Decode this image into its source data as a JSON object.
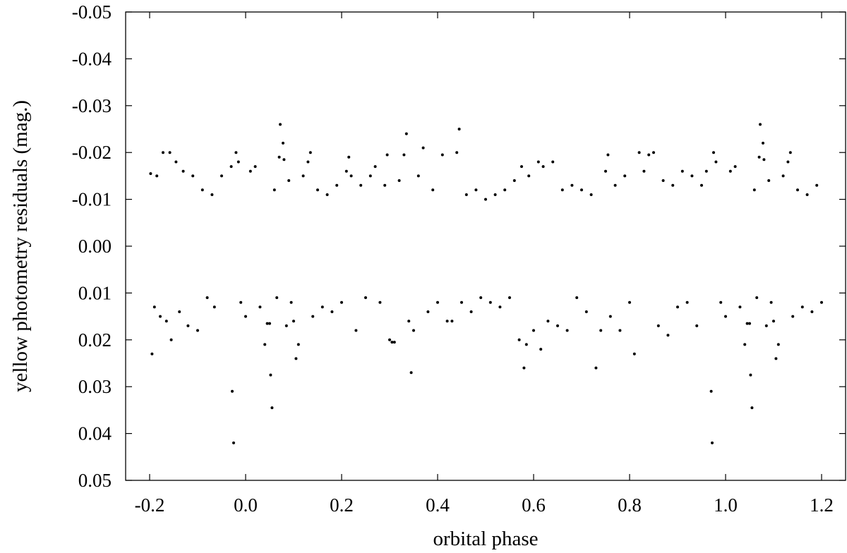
{
  "chart_data": {
    "type": "scatter",
    "title": "",
    "xlabel": "orbital phase",
    "ylabel": "yellow photometry residuals (mag.)",
    "xlim": [
      -0.25,
      1.25
    ],
    "ylim": [
      0.05,
      -0.05
    ],
    "y_inverted": true,
    "grid": false,
    "legend": "none",
    "x_ticks": [
      -0.2,
      0.0,
      0.2,
      0.4,
      0.6,
      0.8,
      1.0,
      1.2
    ],
    "x_tick_labels": [
      "-0.2",
      "0.0",
      "0.2",
      "0.4",
      "0.6",
      "0.8",
      "1.0",
      "1.2"
    ],
    "y_ticks": [
      -0.05,
      -0.04,
      -0.03,
      -0.02,
      -0.01,
      0.0,
      0.01,
      0.02,
      0.03,
      0.04,
      0.05
    ],
    "y_tick_labels": [
      "-0.05",
      "-0.04",
      "-0.03",
      "-0.02",
      "-0.01",
      "0.00",
      "0.01",
      "0.02",
      "0.03",
      "0.04",
      "0.05"
    ],
    "marker_color": "#000000",
    "series": [
      {
        "points": [
          [
            -0.195,
            0.023
          ],
          [
            -0.198,
            -0.0155
          ],
          [
            -0.19,
            0.013
          ],
          [
            -0.185,
            -0.015
          ],
          [
            -0.178,
            0.015
          ],
          [
            -0.172,
            -0.02
          ],
          [
            -0.165,
            0.016
          ],
          [
            -0.158,
            -0.02
          ],
          [
            -0.155,
            0.02
          ],
          [
            -0.145,
            -0.018
          ],
          [
            -0.138,
            0.014
          ],
          [
            -0.13,
            -0.016
          ],
          [
            -0.12,
            0.017
          ],
          [
            -0.11,
            -0.015
          ],
          [
            -0.1,
            0.018
          ],
          [
            -0.09,
            -0.012
          ],
          [
            -0.08,
            0.011
          ],
          [
            -0.07,
            -0.011
          ],
          [
            -0.065,
            0.013
          ],
          [
            -0.05,
            -0.015
          ],
          [
            -0.03,
            -0.017
          ],
          [
            -0.028,
            0.031
          ],
          [
            -0.025,
            0.042
          ],
          [
            -0.02,
            -0.02
          ],
          [
            -0.015,
            -0.018
          ],
          [
            -0.01,
            0.012
          ],
          [
            0.0,
            0.015
          ],
          [
            0.01,
            -0.016
          ],
          [
            0.02,
            -0.017
          ],
          [
            0.03,
            0.013
          ],
          [
            0.04,
            0.021
          ],
          [
            0.045,
            0.0165
          ],
          [
            0.05,
            0.0165
          ],
          [
            0.052,
            0.0275
          ],
          [
            0.055,
            0.0345
          ],
          [
            0.06,
            -0.012
          ],
          [
            0.065,
            0.011
          ],
          [
            0.07,
            -0.019
          ],
          [
            0.072,
            -0.026
          ],
          [
            0.078,
            -0.022
          ],
          [
            0.08,
            -0.0185
          ],
          [
            0.085,
            0.017
          ],
          [
            0.09,
            -0.014
          ],
          [
            0.095,
            0.012
          ],
          [
            0.1,
            0.016
          ],
          [
            0.105,
            0.024
          ],
          [
            0.11,
            0.021
          ],
          [
            0.12,
            -0.015
          ],
          [
            0.13,
            -0.018
          ],
          [
            0.135,
            -0.02
          ],
          [
            0.14,
            0.015
          ],
          [
            0.15,
            -0.012
          ],
          [
            0.16,
            0.013
          ],
          [
            0.17,
            -0.011
          ],
          [
            0.18,
            0.014
          ],
          [
            0.19,
            -0.013
          ],
          [
            0.2,
            0.012
          ],
          [
            0.21,
            -0.016
          ],
          [
            0.215,
            -0.019
          ],
          [
            0.22,
            -0.015
          ],
          [
            0.23,
            0.018
          ],
          [
            0.24,
            -0.013
          ],
          [
            0.25,
            0.011
          ],
          [
            0.26,
            -0.015
          ],
          [
            0.27,
            -0.017
          ],
          [
            0.28,
            0.012
          ],
          [
            0.29,
            -0.013
          ],
          [
            0.295,
            -0.0195
          ],
          [
            0.3,
            0.02
          ],
          [
            0.305,
            0.0205
          ],
          [
            0.31,
            0.0205
          ],
          [
            0.32,
            -0.014
          ],
          [
            0.33,
            -0.0195
          ],
          [
            0.335,
            -0.024
          ],
          [
            0.34,
            0.016
          ],
          [
            0.345,
            0.027
          ],
          [
            0.35,
            0.018
          ],
          [
            0.36,
            -0.015
          ],
          [
            0.37,
            -0.021
          ],
          [
            0.38,
            0.014
          ],
          [
            0.39,
            -0.012
          ],
          [
            0.4,
            0.012
          ],
          [
            0.41,
            -0.0195
          ],
          [
            0.42,
            0.016
          ],
          [
            0.43,
            0.016
          ],
          [
            0.44,
            -0.02
          ],
          [
            0.445,
            -0.025
          ],
          [
            0.45,
            0.012
          ],
          [
            0.46,
            -0.011
          ],
          [
            0.47,
            0.014
          ],
          [
            0.48,
            -0.012
          ],
          [
            0.49,
            0.011
          ],
          [
            0.5,
            -0.01
          ],
          [
            0.51,
            0.012
          ],
          [
            0.52,
            -0.011
          ],
          [
            0.53,
            0.013
          ],
          [
            0.54,
            -0.012
          ],
          [
            0.55,
            0.011
          ],
          [
            0.56,
            -0.014
          ],
          [
            0.57,
            0.02
          ],
          [
            0.575,
            -0.017
          ],
          [
            0.58,
            0.026
          ],
          [
            0.585,
            0.021
          ],
          [
            0.59,
            -0.015
          ],
          [
            0.6,
            0.018
          ],
          [
            0.61,
            -0.018
          ],
          [
            0.615,
            0.022
          ],
          [
            0.62,
            -0.017
          ],
          [
            0.63,
            0.016
          ],
          [
            0.64,
            -0.018
          ],
          [
            0.65,
            0.017
          ],
          [
            0.66,
            -0.012
          ],
          [
            0.67,
            0.018
          ],
          [
            0.68,
            -0.013
          ],
          [
            0.69,
            0.011
          ],
          [
            0.7,
            -0.012
          ],
          [
            0.71,
            0.014
          ],
          [
            0.72,
            -0.011
          ],
          [
            0.73,
            0.026
          ],
          [
            0.74,
            0.018
          ],
          [
            0.75,
            -0.016
          ],
          [
            0.755,
            -0.0195
          ],
          [
            0.76,
            0.015
          ],
          [
            0.77,
            -0.013
          ],
          [
            0.78,
            0.018
          ],
          [
            0.79,
            -0.015
          ],
          [
            0.8,
            0.012
          ],
          [
            0.81,
            0.023
          ],
          [
            0.82,
            -0.02
          ],
          [
            0.83,
            -0.016
          ],
          [
            0.84,
            -0.0195
          ],
          [
            0.85,
            -0.02
          ],
          [
            0.86,
            0.017
          ],
          [
            0.87,
            -0.014
          ],
          [
            0.88,
            0.019
          ],
          [
            0.89,
            -0.013
          ],
          [
            0.9,
            0.013
          ],
          [
            0.91,
            -0.016
          ],
          [
            0.92,
            0.012
          ],
          [
            0.93,
            -0.015
          ],
          [
            0.94,
            0.017
          ],
          [
            0.95,
            -0.013
          ],
          [
            0.96,
            -0.016
          ],
          [
            0.97,
            0.031
          ],
          [
            0.972,
            0.042
          ],
          [
            0.975,
            -0.02
          ],
          [
            0.98,
            -0.018
          ],
          [
            0.99,
            0.012
          ],
          [
            1.0,
            0.015
          ],
          [
            1.01,
            -0.016
          ],
          [
            1.02,
            -0.017
          ],
          [
            1.03,
            0.013
          ],
          [
            1.04,
            0.021
          ],
          [
            1.045,
            0.0165
          ],
          [
            1.05,
            0.0165
          ],
          [
            1.052,
            0.0275
          ],
          [
            1.055,
            0.0345
          ],
          [
            1.06,
            -0.012
          ],
          [
            1.065,
            0.011
          ],
          [
            1.07,
            -0.019
          ],
          [
            1.072,
            -0.026
          ],
          [
            1.078,
            -0.022
          ],
          [
            1.08,
            -0.0185
          ],
          [
            1.085,
            0.017
          ],
          [
            1.09,
            -0.014
          ],
          [
            1.095,
            0.012
          ],
          [
            1.1,
            0.016
          ],
          [
            1.105,
            0.024
          ],
          [
            1.11,
            0.021
          ],
          [
            1.12,
            -0.015
          ],
          [
            1.13,
            -0.018
          ],
          [
            1.135,
            -0.02
          ],
          [
            1.14,
            0.015
          ],
          [
            1.15,
            -0.012
          ],
          [
            1.16,
            0.013
          ],
          [
            1.17,
            -0.011
          ],
          [
            1.18,
            0.014
          ],
          [
            1.19,
            -0.013
          ],
          [
            1.2,
            0.012
          ]
        ]
      }
    ]
  }
}
